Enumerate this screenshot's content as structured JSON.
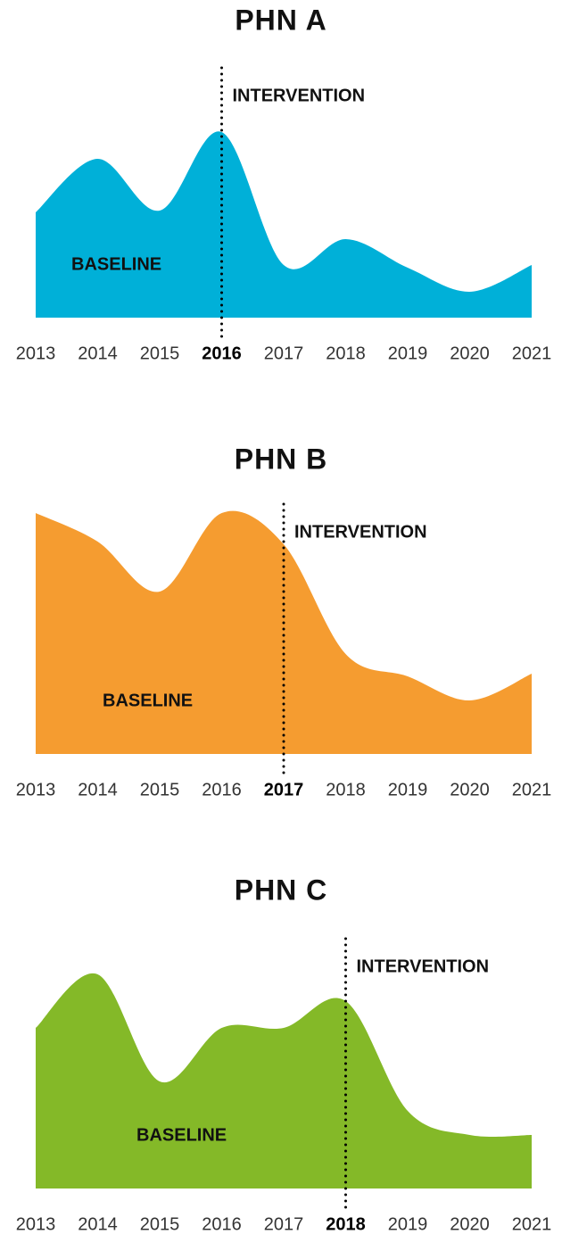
{
  "chart_data": [
    {
      "type": "area",
      "title": "PHN A",
      "color": "#00b0d8",
      "ylim": [
        0,
        300
      ],
      "categories": [
        "2013",
        "2014",
        "2015",
        "2016",
        "2017",
        "2018",
        "2019",
        "2020",
        "2021"
      ],
      "values": [
        118,
        178,
        120,
        208,
        59,
        88,
        56,
        29,
        59
      ],
      "highlight": "2016",
      "annotations": {
        "intervention": "INTERVENTION",
        "baseline": "BASELINE"
      }
    },
    {
      "type": "area",
      "title": "PHN B",
      "color": "#f59c30",
      "ylim": [
        0,
        300
      ],
      "categories": [
        "2013",
        "2014",
        "2015",
        "2016",
        "2017",
        "2018",
        "2019",
        "2020",
        "2021"
      ],
      "values": [
        270,
        238,
        182,
        270,
        235,
        112,
        87,
        60,
        90
      ],
      "highlight": "2017",
      "annotations": {
        "intervention": "INTERVENTION",
        "baseline": "BASELINE"
      }
    },
    {
      "type": "area",
      "title": "PHN C",
      "color": "#84b928",
      "ylim": [
        0,
        300
      ],
      "categories": [
        "2013",
        "2014",
        "2015",
        "2016",
        "2017",
        "2018",
        "2019",
        "2020",
        "2021"
      ],
      "values": [
        180,
        240,
        120,
        180,
        180,
        210,
        87,
        60,
        60
      ],
      "highlight": "2018",
      "annotations": {
        "intervention": "INTERVENTION",
        "baseline": "BASELINE"
      }
    }
  ]
}
